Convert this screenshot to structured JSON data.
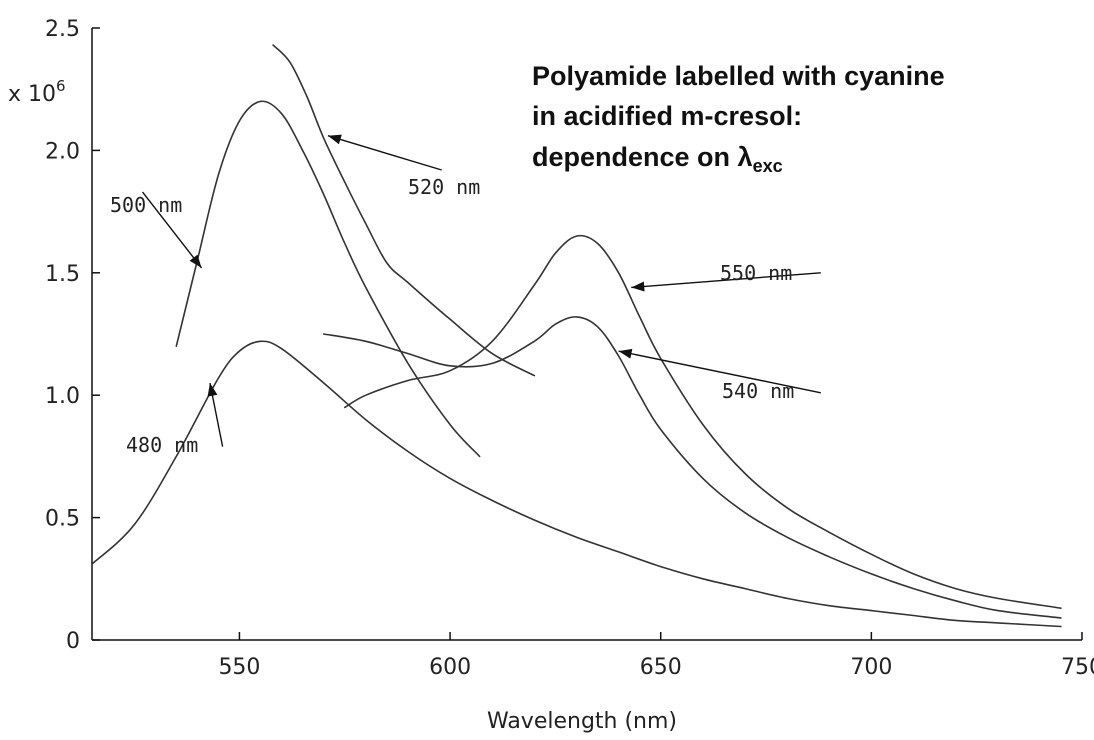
{
  "chart_data": {
    "type": "line",
    "title_lines": [
      "Polyamide labelled with cyanine",
      "in acidified m-cresol:",
      "dependence on λ"
    ],
    "title_subscript": "exc",
    "xlabel": "Wavelength (nm)",
    "ylabel": "",
    "y_multiplier_base": "x 10",
    "y_multiplier_exp": "6",
    "xlim": [
      515,
      750
    ],
    "ylim": [
      0,
      2.5
    ],
    "xticks": [
      550,
      600,
      650,
      700,
      750
    ],
    "xtick_labels": [
      "550",
      "600",
      "650",
      "700",
      "750"
    ],
    "yticks": [
      0,
      0.5,
      1.0,
      1.5,
      2.0,
      2.5
    ],
    "ytick_labels": [
      "0",
      "0.5",
      "1.0",
      "1.5",
      "2.0",
      "2.5"
    ],
    "grid": false,
    "series": [
      {
        "name": "480 nm",
        "x": [
          515,
          525,
          535,
          545,
          550,
          555,
          560,
          570,
          580,
          590,
          600,
          610,
          620,
          630,
          640,
          650,
          660,
          670,
          680,
          690,
          700,
          710,
          720,
          730,
          745
        ],
        "y": [
          0.31,
          0.47,
          0.75,
          1.07,
          1.18,
          1.22,
          1.19,
          1.05,
          0.9,
          0.77,
          0.66,
          0.57,
          0.49,
          0.42,
          0.36,
          0.3,
          0.25,
          0.21,
          0.17,
          0.14,
          0.12,
          0.1,
          0.08,
          0.07,
          0.055
        ]
      },
      {
        "name": "500 nm",
        "x": [
          535,
          540,
          545,
          550,
          555,
          560,
          565,
          570,
          575,
          580,
          590,
          600,
          607
        ],
        "y": [
          1.2,
          1.55,
          1.9,
          2.12,
          2.2,
          2.15,
          2.0,
          1.82,
          1.62,
          1.44,
          1.13,
          0.88,
          0.75
        ]
      },
      {
        "name": "520 nm",
        "x": [
          558,
          562,
          566,
          570,
          575,
          580,
          585,
          590,
          600,
          610,
          620
        ],
        "y": [
          2.43,
          2.36,
          2.22,
          2.05,
          1.87,
          1.7,
          1.54,
          1.46,
          1.31,
          1.17,
          1.08
        ]
      },
      {
        "name": "540 nm",
        "x": [
          570,
          580,
          590,
          600,
          610,
          620,
          625,
          630,
          635,
          640,
          645,
          650,
          660,
          670,
          680,
          690,
          700,
          710,
          720,
          730,
          745
        ],
        "y": [
          1.25,
          1.22,
          1.17,
          1.12,
          1.13,
          1.22,
          1.29,
          1.32,
          1.28,
          1.16,
          1.0,
          0.86,
          0.66,
          0.52,
          0.42,
          0.34,
          0.27,
          0.21,
          0.16,
          0.12,
          0.09
        ]
      },
      {
        "name": "550 nm",
        "x": [
          575,
          580,
          590,
          600,
          610,
          620,
          625,
          630,
          635,
          640,
          645,
          650,
          660,
          670,
          680,
          690,
          700,
          710,
          720,
          730,
          745
        ],
        "y": [
          0.95,
          1.0,
          1.06,
          1.1,
          1.22,
          1.45,
          1.58,
          1.65,
          1.62,
          1.5,
          1.32,
          1.15,
          0.88,
          0.68,
          0.54,
          0.44,
          0.35,
          0.27,
          0.21,
          0.17,
          0.13
        ]
      }
    ],
    "annotations": [
      {
        "label": "500 nm",
        "text_x": 538,
        "text_y": 1.95,
        "target_x": 541,
        "target_y": 1.52,
        "from_x": 527,
        "from_y": 1.83
      },
      {
        "label": "520 nm",
        "text_x": 600,
        "text_y": 1.92,
        "target_x": 571,
        "target_y": 2.06,
        "from_x": 598,
        "from_y": 1.92
      },
      {
        "label": "550 nm",
        "text_x": 690,
        "text_y": 1.5,
        "target_x": 643,
        "target_y": 1.44,
        "from_x": 688,
        "from_y": 1.5
      },
      {
        "label": "540 nm",
        "text_x": 690,
        "text_y": 1.0,
        "target_x": 640,
        "target_y": 1.18,
        "from_x": 688,
        "from_y": 1.01
      },
      {
        "label": "480 nm",
        "text_x": 539,
        "text_y": 0.82,
        "target_x": 543,
        "target_y": 1.05,
        "from_x": 546,
        "from_y": 0.79
      }
    ]
  }
}
